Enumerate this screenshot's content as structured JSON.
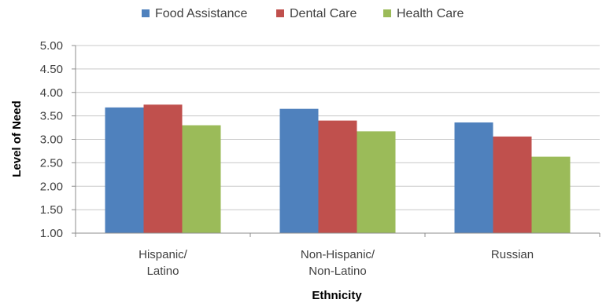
{
  "chart_data": {
    "type": "bar",
    "title": "",
    "xlabel": "Ethnicity",
    "ylabel": "Level of Need",
    "ylim": [
      1.0,
      5.0
    ],
    "yticks": [
      "1.00",
      "1.50",
      "2.00",
      "2.50",
      "3.00",
      "3.50",
      "4.00",
      "4.50",
      "5.00"
    ],
    "grid": true,
    "legend_position": "top",
    "categories": [
      [
        "Hispanic/",
        "Latino"
      ],
      [
        "Non-Hispanic/",
        "Non-Latino"
      ],
      [
        "Russian"
      ]
    ],
    "series": [
      {
        "name": "Food Assistance",
        "color": "#4F81BD",
        "values": [
          3.68,
          3.65,
          3.36
        ]
      },
      {
        "name": "Dental Care",
        "color": "#C0504D",
        "values": [
          3.74,
          3.4,
          3.06
        ]
      },
      {
        "name": "Health Care",
        "color": "#9BBB59",
        "values": [
          3.3,
          3.17,
          2.63
        ]
      }
    ]
  }
}
